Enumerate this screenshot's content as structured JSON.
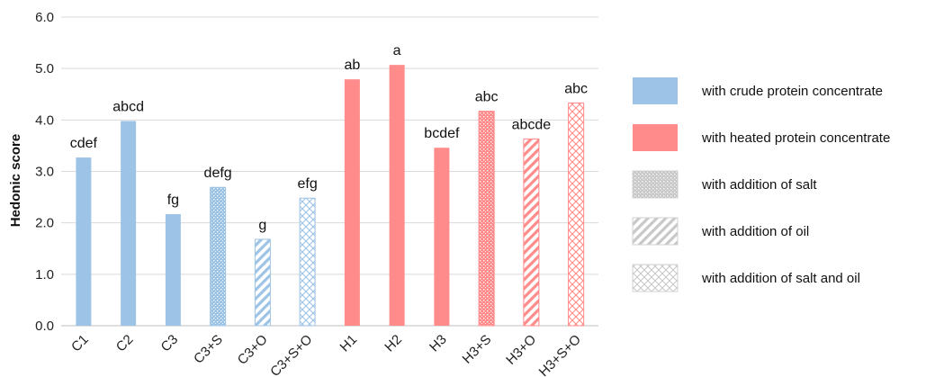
{
  "chart_data": {
    "type": "bar",
    "title": "",
    "xlabel": "",
    "ylabel": "Hedonic score",
    "ylim": [
      0,
      6
    ],
    "yticks": [
      "0.0",
      "1.0",
      "2.0",
      "3.0",
      "4.0",
      "5.0",
      "6.0"
    ],
    "grid": true,
    "legend_position": "right",
    "categories": [
      "C1",
      "C2",
      "C3",
      "C3+S",
      "C3+O",
      "C3+S+O",
      "H1",
      "H2",
      "H3",
      "H3+S",
      "H3+O",
      "H3+S+O"
    ],
    "values": [
      3.27,
      3.98,
      2.17,
      2.69,
      1.68,
      2.48,
      4.79,
      5.07,
      3.46,
      4.17,
      3.63,
      4.33
    ],
    "significance_labels": [
      "cdef",
      "abcd",
      "fg",
      "defg",
      "g",
      "efg",
      "ab",
      "a",
      "bcdef",
      "abc",
      "abcde",
      "abc"
    ],
    "bar_color_group": [
      "crude",
      "crude",
      "crude",
      "crude",
      "crude",
      "crude",
      "heated",
      "heated",
      "heated",
      "heated",
      "heated",
      "heated"
    ],
    "bar_pattern": [
      "solid",
      "solid",
      "solid",
      "dots",
      "diagonal",
      "crosshatch",
      "solid",
      "solid",
      "solid",
      "dots",
      "diagonal",
      "crosshatch"
    ],
    "colors": {
      "crude": "#9DC3E6",
      "heated": "#FF8B8B",
      "pattern_gray": "#C8C8C8",
      "gridline": "#D9D9D9"
    },
    "legend": [
      {
        "label": "with crude protein concentrate",
        "color_group": "crude",
        "pattern": "solid"
      },
      {
        "label": "with heated protein concentrate",
        "color_group": "heated",
        "pattern": "solid"
      },
      {
        "label": "with addition of salt",
        "color_group": "gray",
        "pattern": "dots"
      },
      {
        "label": "with addition of oil",
        "color_group": "gray",
        "pattern": "diagonal"
      },
      {
        "label": "with addition of salt and oil",
        "color_group": "gray",
        "pattern": "crosshatch"
      }
    ]
  }
}
